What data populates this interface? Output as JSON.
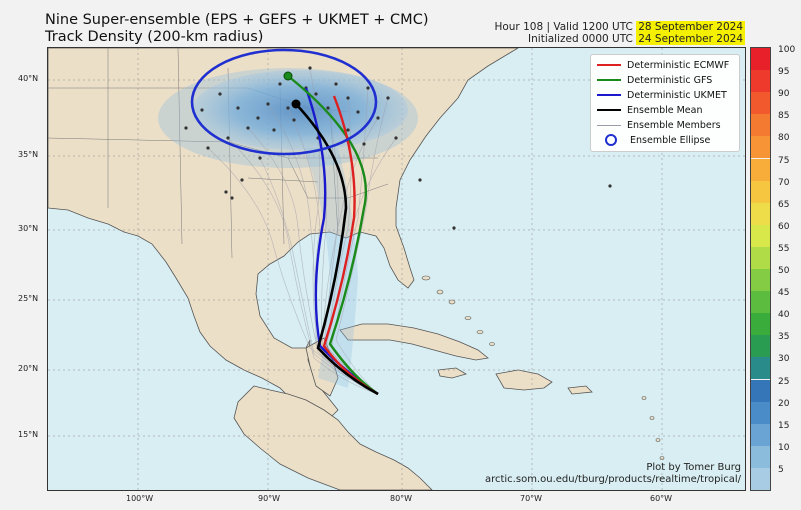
{
  "title": {
    "line1": "Nine Super-ensemble (EPS + GEFS + UKMET + CMC)",
    "line2": "Track Density (200-km radius)"
  },
  "meta": {
    "hour_prefix": "Hour 108 | Valid 1200 UTC ",
    "valid_date": "28 September 2024",
    "init_prefix": "Initialized 0000 UTC ",
    "init_date": "24 September 2024"
  },
  "latitude_labels": [
    "40°N",
    "35°N",
    "30°N",
    "25°N",
    "20°N",
    "15°N"
  ],
  "longitude_labels": [
    "100°W",
    "90°W",
    "80°W",
    "70°W",
    "60°W"
  ],
  "legend": {
    "items": [
      {
        "label": "Deterministic ECMWF",
        "color": "#dd2020"
      },
      {
        "label": "Deterministic GFS",
        "color": "#1a8a1a"
      },
      {
        "label": "Deterministic UKMET",
        "color": "#1a1acc"
      },
      {
        "label": "Ensemble Mean",
        "color": "#000000"
      },
      {
        "label": "Ensemble Members",
        "color": "#9a9aa8"
      },
      {
        "label": "Ensemble Ellipse",
        "color": "#2030d0"
      }
    ]
  },
  "credit": {
    "line1": "Plot by Tomer Burg",
    "line2": "arctic.som.ou.edu/tburg/products/realtime/tropical/"
  },
  "colorbar": {
    "labels": [
      "100",
      "95",
      "90",
      "85",
      "80",
      "75",
      "70",
      "65",
      "60",
      "55",
      "50",
      "45",
      "40",
      "35",
      "30",
      "25",
      "20",
      "15",
      "10",
      "5"
    ],
    "colors": [
      "#e8202a",
      "#ee3a2c",
      "#f25a2e",
      "#f47a32",
      "#f69436",
      "#f8ad3a",
      "#f6c640",
      "#eedd48",
      "#d8e84a",
      "#b0dc48",
      "#84cc44",
      "#5cbc40",
      "#3aac3c",
      "#2a9c52",
      "#2a8c8a",
      "#3476b8",
      "#4a8cc8",
      "#6aa4d4",
      "#8cbcdc",
      "#a8cce4"
    ]
  },
  "colors": {
    "land": "#ecdfc8",
    "ocean": "#d8eef2",
    "density_blue": "#4a90d0",
    "ellipse": "#2030d0",
    "highlight": "#f5f000"
  }
}
